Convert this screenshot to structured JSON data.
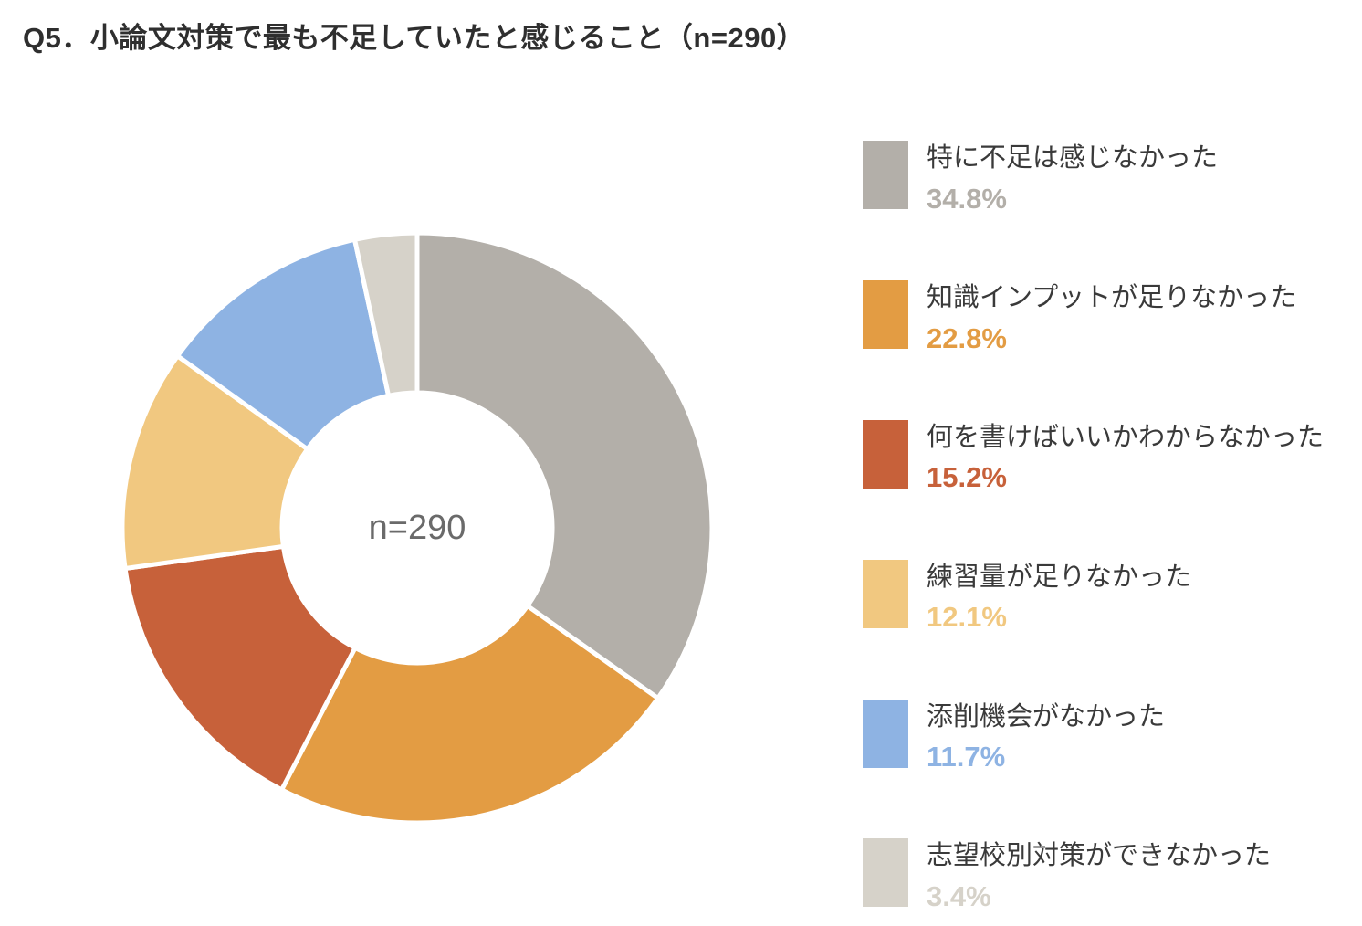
{
  "title": "Q5．小論文対策で最も不足していたと感じること（n=290）",
  "chart_data": {
    "type": "pie",
    "subtype": "donut",
    "title": "Q5．小論文対策で最も不足していたと感じること（n=290）",
    "n": 290,
    "center_label": "n=290",
    "start_angle": "12-oclock",
    "direction": "clockwise",
    "inner_radius_ratio": 0.46,
    "legend_position": "right",
    "gap_color": "#ffffff",
    "segments": [
      {
        "label": "特に不足は感じなかった",
        "value": 34.8,
        "display": "34.8%",
        "color": "#b3afa9"
      },
      {
        "label": "知識インプットが足りなかった",
        "value": 22.8,
        "display": "22.8%",
        "color": "#e39c43"
      },
      {
        "label": "何を書けばいいかわからなかった",
        "value": 15.2,
        "display": "15.2%",
        "color": "#c7613a"
      },
      {
        "label": "練習量が足りなかった",
        "value": 12.1,
        "display": "12.1%",
        "color": "#f1c880"
      },
      {
        "label": "添削機会がなかった",
        "value": 11.7,
        "display": "11.7%",
        "color": "#8eb3e3"
      },
      {
        "label": "志望校別対策ができなかった",
        "value": 3.4,
        "display": "3.4%",
        "color": "#d6d2c9"
      }
    ]
  }
}
